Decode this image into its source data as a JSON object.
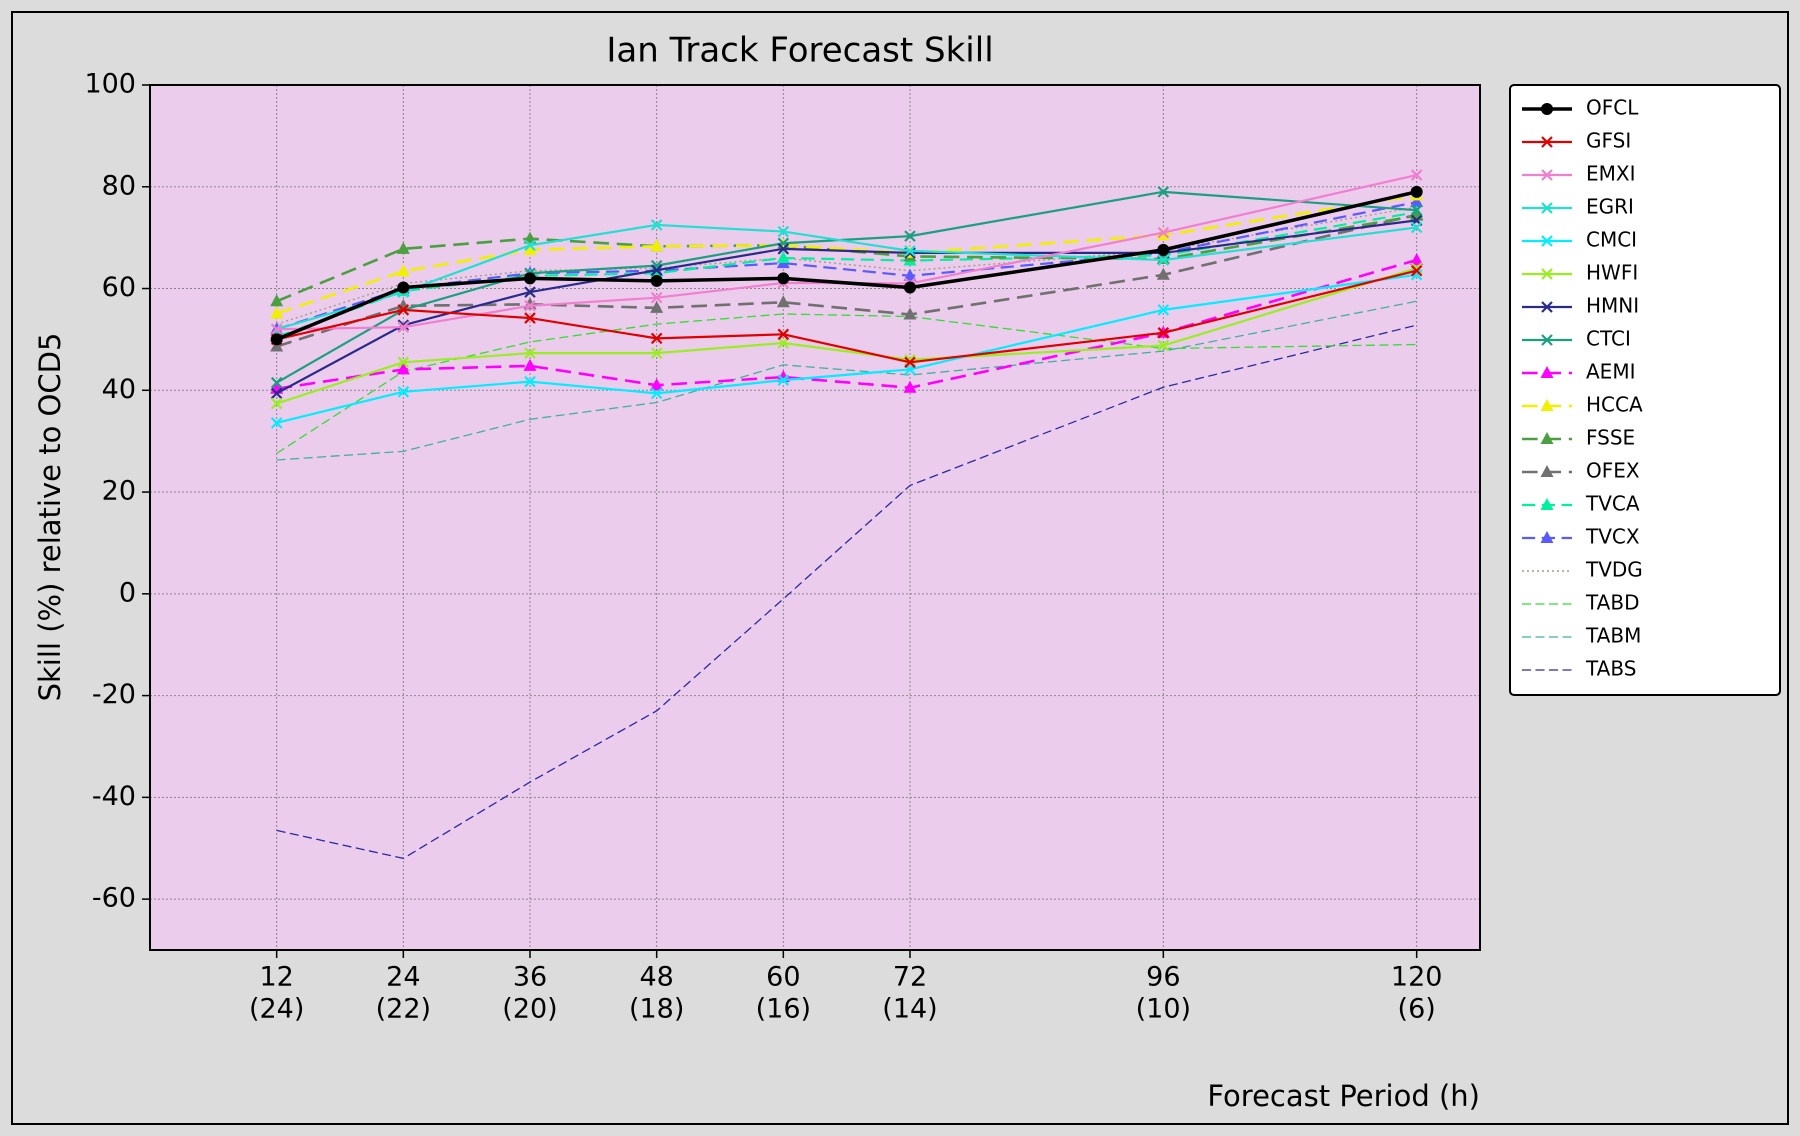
{
  "chart_data": {
    "type": "line",
    "title": "Ian Track Forecast Skill",
    "x_label": "Forecast Period (h)",
    "y_label": "Skill (%) relative to OCD5",
    "x": [
      12,
      24,
      36,
      48,
      60,
      72,
      96,
      120
    ],
    "xlim": [
      0,
      126
    ],
    "xticks": [
      12,
      24,
      36,
      48,
      60,
      72,
      96,
      120
    ],
    "xtick_counts": [
      "(24)",
      "(22)",
      "(20)",
      "(18)",
      "(16)",
      "(14)",
      "(10)",
      "(6)"
    ],
    "ylim": [
      -70,
      100
    ],
    "yticks": [
      -60,
      -40,
      -20,
      0,
      20,
      40,
      60,
      80,
      100
    ],
    "grid": true,
    "legend": "right",
    "series": [
      {
        "name": "OFCL",
        "color": "#000000",
        "dash": "solid",
        "marker": "circle",
        "width": 3.5,
        "values": [
          50,
          60.2,
          62,
          61.5,
          62,
          60.2,
          67.6,
          79
        ]
      },
      {
        "name": "GFSI",
        "color": "#e00000",
        "dash": "solid",
        "marker": "x",
        "width": 2.2,
        "values": [
          50,
          55.8,
          54.2,
          50.2,
          51,
          45.5,
          51.3,
          63.5
        ]
      },
      {
        "name": "EMXI",
        "color": "#f07fd0",
        "dash": "solid",
        "marker": "x",
        "width": 2.2,
        "values": [
          52,
          52.4,
          56.6,
          58.2,
          61.1,
          61,
          71,
          82.3
        ]
      },
      {
        "name": "EGRI",
        "color": "#20e0d0",
        "dash": "solid",
        "marker": "x",
        "width": 2.2,
        "values": [
          52,
          59.3,
          68.5,
          72.5,
          71.2,
          67.4,
          65.6,
          72
        ]
      },
      {
        "name": "CMCI",
        "color": "#00eeff",
        "dash": "solid",
        "marker": "x",
        "width": 2.2,
        "values": [
          33.6,
          39.7,
          41.7,
          39.4,
          42,
          44.1,
          55.8,
          62.7
        ]
      },
      {
        "name": "HWFI",
        "color": "#99ee22",
        "dash": "solid",
        "marker": "x",
        "width": 2.2,
        "values": [
          37.4,
          45.5,
          47.3,
          47.3,
          49.3,
          46,
          48.8,
          64
        ]
      },
      {
        "name": "HMNI",
        "color": "#2a2a8a",
        "dash": "solid",
        "marker": "x",
        "width": 2.2,
        "values": [
          39.4,
          52.8,
          59.3,
          63.6,
          67.8,
          67,
          67,
          73.4
        ]
      },
      {
        "name": "CTCI",
        "color": "#1aa080",
        "dash": "solid",
        "marker": "x",
        "width": 2.2,
        "values": [
          41.5,
          55.8,
          63,
          64.5,
          68.9,
          70.3,
          79,
          75.4
        ]
      },
      {
        "name": "AEMI",
        "color": "#ff00ff",
        "dash": "dashed",
        "marker": "triangle",
        "width": 2.6,
        "values": [
          40.3,
          44.1,
          44.8,
          41,
          42.6,
          40.5,
          51.3,
          65.6
        ]
      },
      {
        "name": "HCCA",
        "color": "#f0f000",
        "dash": "dashed",
        "marker": "triangle",
        "width": 2.6,
        "values": [
          55.1,
          63.4,
          67.6,
          68.3,
          68.5,
          67,
          70.5,
          78.3
        ]
      },
      {
        "name": "FSSE",
        "color": "#4aa040",
        "dash": "dashed",
        "marker": "triangle",
        "width": 2.6,
        "values": [
          57.5,
          67.8,
          69.8,
          68.3,
          68.5,
          66.3,
          65.8,
          74.3
        ]
      },
      {
        "name": "OFEX",
        "color": "#707070",
        "dash": "dashed",
        "marker": "triangle",
        "width": 2.6,
        "values": [
          48.6,
          56.6,
          56.9,
          56.2,
          57.3,
          54.9,
          62.7,
          74.5
        ]
      },
      {
        "name": "TVCA",
        "color": "#00f0a0",
        "dash": "dashed",
        "marker": "triangle",
        "width": 2.2,
        "values": [
          50.5,
          59.5,
          62.5,
          63,
          66,
          65.5,
          66.5,
          75
        ]
      },
      {
        "name": "TVCX",
        "color": "#5a5aff",
        "dash": "dashed",
        "marker": "triangle",
        "width": 2.2,
        "values": [
          52,
          60,
          63,
          63.5,
          65,
          62.5,
          67,
          77
        ]
      },
      {
        "name": "TVDG",
        "color": "#a0a080",
        "dash": "dotted",
        "marker": null,
        "width": 1.4,
        "values": [
          53,
          61,
          63.5,
          64,
          66,
          63.5,
          67.5,
          76
        ]
      },
      {
        "name": "TABD",
        "color": "#33dd33",
        "dash": "dashed",
        "marker": null,
        "width": 1.3,
        "values": [
          27.6,
          43.7,
          49.5,
          53,
          55,
          54.5,
          48.2,
          49
        ]
      },
      {
        "name": "TABM",
        "color": "#40b0a0",
        "dash": "dashed",
        "marker": null,
        "width": 1.3,
        "values": [
          26.3,
          28,
          34.3,
          37.6,
          45,
          43,
          47.7,
          57.5
        ]
      },
      {
        "name": "TABS",
        "color": "#2a2aa0",
        "dash": "dashed",
        "marker": null,
        "width": 1.3,
        "values": [
          -46.5,
          -52,
          -37,
          -23,
          -1,
          21.3,
          40.6,
          52.8
        ]
      }
    ]
  }
}
